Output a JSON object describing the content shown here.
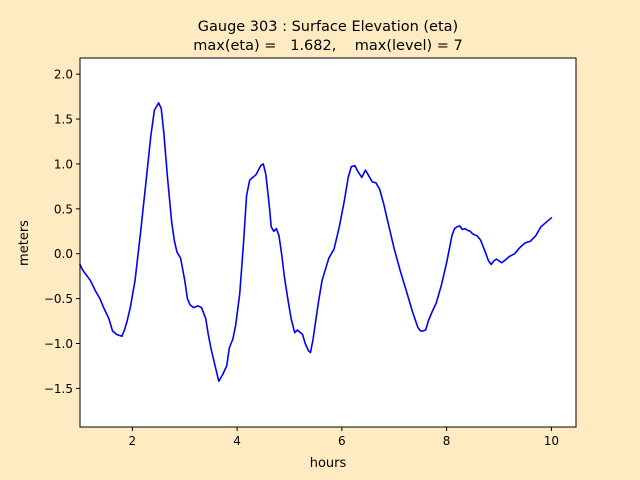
{
  "chart_data": {
    "type": "line",
    "title_line1": "Gauge 303 : Surface Elevation (eta)",
    "title_line2": "max(eta) =   1.682,    max(level) = 7",
    "xlabel": "hours",
    "ylabel": "meters",
    "xlim": [
      1.0,
      10.47
    ],
    "ylim": [
      -1.93,
      2.18
    ],
    "xticks": [
      2,
      4,
      6,
      8,
      10
    ],
    "yticks": [
      -1.5,
      -1.0,
      -0.5,
      0.0,
      0.5,
      1.0,
      1.5,
      2.0
    ],
    "ytick_labels": [
      "−1.5",
      "−1.0",
      "−0.5",
      "0.0",
      "0.5",
      "1.0",
      "1.5",
      "2.0"
    ],
    "grid": false,
    "colors": {
      "background": "#ffebc1",
      "axes": "#ffffff",
      "line": "#0000ff"
    },
    "series": [
      {
        "x": [
          1.0,
          1.05,
          1.1,
          1.2,
          1.3,
          1.38,
          1.45,
          1.55,
          1.62,
          1.7,
          1.8,
          1.85,
          1.9,
          1.96,
          2.05,
          2.15,
          2.25,
          2.35,
          2.42,
          2.5,
          2.55,
          2.6,
          2.67,
          2.75,
          2.8,
          2.85,
          2.92,
          3.0,
          3.05,
          3.1,
          3.17,
          3.25,
          3.32,
          3.4,
          3.45,
          3.5,
          3.58,
          3.65,
          3.72,
          3.8,
          3.85,
          3.92,
          3.97,
          4.05,
          4.12,
          4.18,
          4.24,
          4.3,
          4.36,
          4.45,
          4.5,
          4.55,
          4.62,
          4.65,
          4.7,
          4.75,
          4.8,
          4.85,
          4.9,
          4.98,
          5.03,
          5.1,
          5.15,
          5.25,
          5.3,
          5.36,
          5.4,
          5.45,
          5.55,
          5.62,
          5.75,
          5.85,
          5.95,
          6.05,
          6.12,
          6.18,
          6.25,
          6.3,
          6.38,
          6.45,
          6.5,
          6.58,
          6.65,
          6.72,
          6.8,
          6.9,
          7.0,
          7.12,
          7.25,
          7.35,
          7.45,
          7.5,
          7.55,
          7.6,
          7.65,
          7.72,
          7.8,
          7.9,
          8.0,
          8.05,
          8.1,
          8.15,
          8.2,
          8.25,
          8.3,
          8.35,
          8.4,
          8.45,
          8.5,
          8.58,
          8.65,
          8.75,
          8.8,
          8.85,
          8.9,
          8.95,
          9.0,
          9.05,
          9.1,
          9.2,
          9.3,
          9.4,
          9.5,
          9.6,
          9.7,
          9.8,
          9.9,
          10.0
        ],
        "y": [
          -0.12,
          -0.18,
          -0.22,
          -0.3,
          -0.42,
          -0.5,
          -0.6,
          -0.72,
          -0.86,
          -0.9,
          -0.92,
          -0.85,
          -0.75,
          -0.6,
          -0.3,
          0.2,
          0.75,
          1.3,
          1.6,
          1.68,
          1.62,
          1.35,
          0.85,
          0.35,
          0.15,
          0.02,
          -0.05,
          -0.3,
          -0.5,
          -0.57,
          -0.6,
          -0.58,
          -0.6,
          -0.72,
          -0.9,
          -1.05,
          -1.25,
          -1.42,
          -1.35,
          -1.25,
          -1.05,
          -0.95,
          -0.8,
          -0.45,
          0.1,
          0.65,
          0.82,
          0.85,
          0.88,
          0.98,
          1.0,
          0.88,
          0.5,
          0.3,
          0.25,
          0.28,
          0.2,
          0.0,
          -0.25,
          -0.55,
          -0.72,
          -0.88,
          -0.85,
          -0.9,
          -1.0,
          -1.08,
          -1.1,
          -0.95,
          -0.55,
          -0.3,
          -0.05,
          0.05,
          0.3,
          0.6,
          0.85,
          0.97,
          0.98,
          0.92,
          0.85,
          0.93,
          0.88,
          0.8,
          0.79,
          0.72,
          0.55,
          0.3,
          0.05,
          -0.2,
          -0.45,
          -0.65,
          -0.82,
          -0.86,
          -0.86,
          -0.85,
          -0.75,
          -0.65,
          -0.55,
          -0.35,
          -0.1,
          0.05,
          0.2,
          0.28,
          0.3,
          0.31,
          0.27,
          0.28,
          0.26,
          0.25,
          0.22,
          0.2,
          0.15,
          0.0,
          -0.08,
          -0.12,
          -0.08,
          -0.06,
          -0.08,
          -0.1,
          -0.08,
          -0.03,
          0.0,
          0.07,
          0.12,
          0.14,
          0.2,
          0.3,
          0.35,
          0.4
        ]
      }
    ]
  }
}
